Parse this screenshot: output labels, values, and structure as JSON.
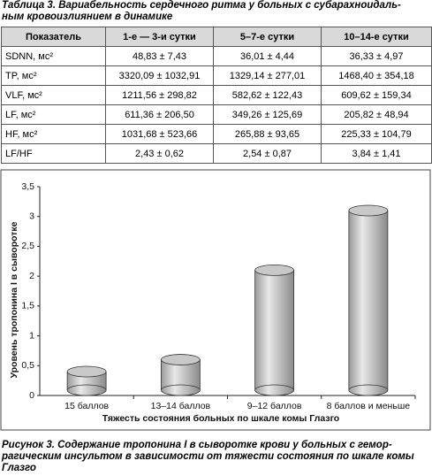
{
  "table_caption": [
    "Таблица 3. Вариабельность сердечного ритма у больных с субарахноидаль-",
    "ным кровоизлиянием в динамике"
  ],
  "table": {
    "header": [
      "Показатель",
      "1-е — 3-и сутки",
      "5–7-е сутки",
      "10–14-е сутки"
    ],
    "rows": [
      [
        "SDNN, мс²",
        "48,83 ± 7,43",
        "36,01 ± 4,44",
        "36,33 ± 4,97"
      ],
      [
        "TP, мс²",
        "3320,09 ± 1032,91",
        "1329,14 ± 277,01",
        "1468,40 ± 354,18"
      ],
      [
        "VLF, мс²",
        "1211,56 ± 298,82",
        "582,62 ± 122,43",
        "609,62 ± 159,34"
      ],
      [
        "LF, мс²",
        "611,36 ± 206,50",
        "349,26 ± 125,69",
        "205,82 ± 48,94"
      ],
      [
        "HF, мс²",
        "1031,68 ± 523,66",
        "265,88 ± 93,65",
        "225,33 ± 104,79"
      ],
      [
        "LF/HF",
        "2,43 ± 0,62",
        "2,54 ± 0,87",
        "3,84 ± 1,41"
      ]
    ]
  },
  "chart_data": {
    "type": "bar",
    "ylabel": "Уровень тропонина I в сыворотке",
    "xlabel": "Тяжесть состояния больных по шкале комы Глазго",
    "categories": [
      "15 баллов",
      "13–14 баллов",
      "9–12 баллов",
      "8 баллов и меньше"
    ],
    "values": [
      0.4,
      0.6,
      2.1,
      3.1
    ],
    "color": "#c8c8c8",
    "ylim": [
      0,
      3.5
    ],
    "yticks": [
      0,
      {
        "value": 0.5,
        "label": "0,5"
      },
      1,
      {
        "value": 1.5,
        "label": "1,5"
      },
      2,
      {
        "value": 2.5,
        "label": "2,5"
      },
      3,
      {
        "value": 3.5,
        "label": "3,5"
      }
    ]
  },
  "figure_caption": [
    "Рисунок 3. Содержание тропонина I в сыворотке крови у больных с гемор-",
    "рагическим инсультом в зависимости от тяжести состояния по шкале комы",
    "Глазго"
  ]
}
